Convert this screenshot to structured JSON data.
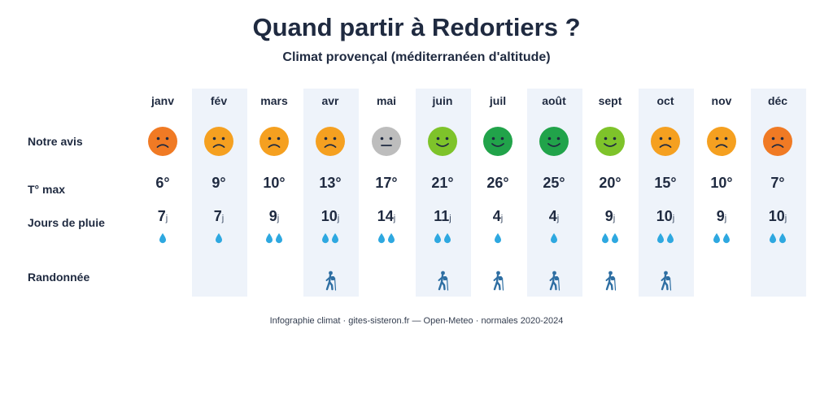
{
  "title": "Quand partir à Redortiers ?",
  "subtitle": "Climat provençal (méditerranéen d'altitude)",
  "row_labels": {
    "avis": "Notre avis",
    "tmax": "T° max",
    "pluie": "Jours de pluie",
    "rando": "Randonnée"
  },
  "rain_unit": "j",
  "months": [
    {
      "name": "janv",
      "mood": "sad",
      "face_color": "#f07a24",
      "tmax": "6°",
      "rain_days": "7",
      "drops": 1,
      "hike": false,
      "highlight": false
    },
    {
      "name": "fév",
      "mood": "sad",
      "face_color": "#f5a020",
      "tmax": "9°",
      "rain_days": "7",
      "drops": 1,
      "hike": false,
      "highlight": true
    },
    {
      "name": "mars",
      "mood": "sad",
      "face_color": "#f5a020",
      "tmax": "10°",
      "rain_days": "9",
      "drops": 2,
      "hike": false,
      "highlight": false
    },
    {
      "name": "avr",
      "mood": "sad",
      "face_color": "#f5a020",
      "tmax": "13°",
      "rain_days": "10",
      "drops": 2,
      "hike": true,
      "highlight": true
    },
    {
      "name": "mai",
      "mood": "neutral",
      "face_color": "#bdbdbd",
      "tmax": "17°",
      "rain_days": "14",
      "drops": 2,
      "hike": false,
      "highlight": false
    },
    {
      "name": "juin",
      "mood": "happy",
      "face_color": "#7ec32a",
      "tmax": "21°",
      "rain_days": "11",
      "drops": 2,
      "hike": true,
      "highlight": true
    },
    {
      "name": "juil",
      "mood": "happy",
      "face_color": "#21a34a",
      "tmax": "26°",
      "rain_days": "4",
      "drops": 1,
      "hike": true,
      "highlight": false
    },
    {
      "name": "août",
      "mood": "happy",
      "face_color": "#21a34a",
      "tmax": "25°",
      "rain_days": "4",
      "drops": 1,
      "hike": true,
      "highlight": true
    },
    {
      "name": "sept",
      "mood": "happy",
      "face_color": "#7ec32a",
      "tmax": "20°",
      "rain_days": "9",
      "drops": 2,
      "hike": true,
      "highlight": false
    },
    {
      "name": "oct",
      "mood": "sad",
      "face_color": "#f5a020",
      "tmax": "15°",
      "rain_days": "10",
      "drops": 2,
      "hike": true,
      "highlight": true
    },
    {
      "name": "nov",
      "mood": "sad",
      "face_color": "#f5a020",
      "tmax": "10°",
      "rain_days": "9",
      "drops": 2,
      "hike": false,
      "highlight": false
    },
    {
      "name": "déc",
      "mood": "sad",
      "face_color": "#f07a24",
      "tmax": "7°",
      "rain_days": "10",
      "drops": 2,
      "hike": false,
      "highlight": true
    }
  ],
  "colors": {
    "text": "#1f2a40",
    "highlight": "#eef3fa",
    "drop": "#2ea8e0",
    "hiker": "#2f6fa3"
  },
  "footer": "Infographie climat · gites-sisteron.fr — Open-Meteo · normales 2020-2024"
}
